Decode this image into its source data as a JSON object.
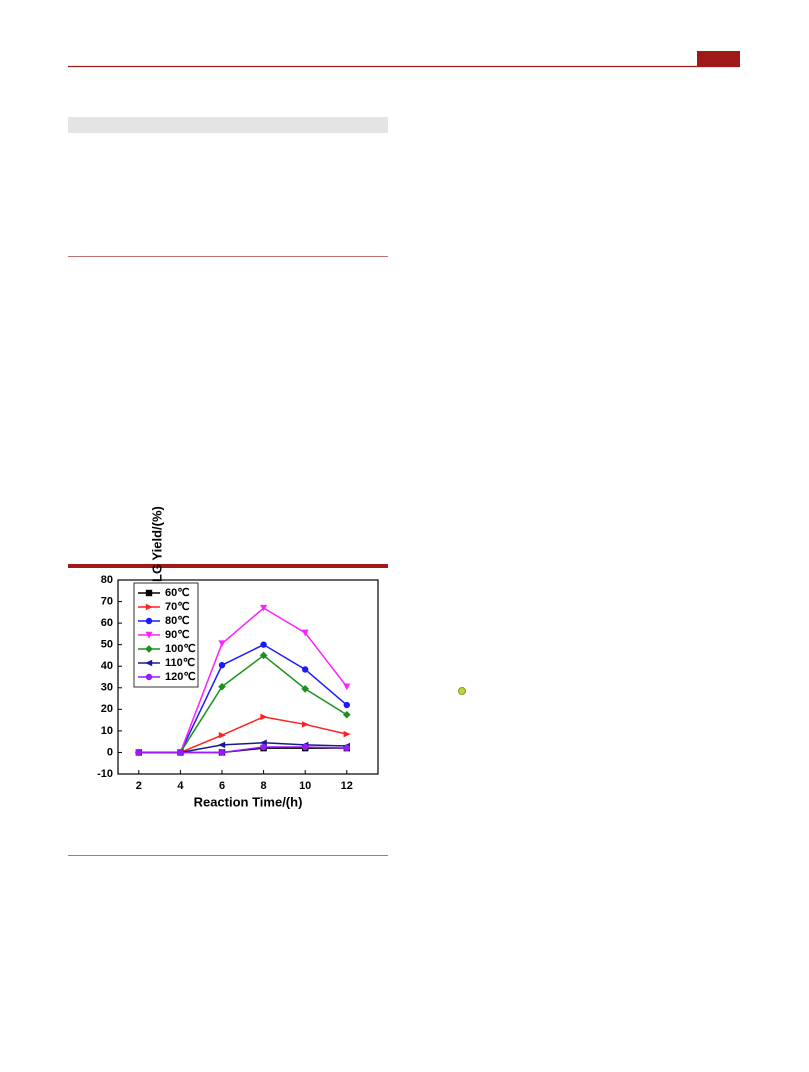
{
  "chart_data": {
    "type": "line",
    "x": [
      2,
      4,
      6,
      8,
      10,
      12
    ],
    "xlabel": "Reaction Time/(h)",
    "ylabel": "NCA-BLG Yield/(%)",
    "xlim": [
      1,
      13.5
    ],
    "xticks": [
      2,
      4,
      6,
      8,
      10,
      12
    ],
    "ylim": [
      -10,
      80
    ],
    "yticks": [
      -10,
      0,
      10,
      20,
      30,
      40,
      50,
      60,
      70,
      80
    ],
    "legend": "upper left",
    "series": [
      {
        "name": "60℃",
        "color": "#000000",
        "marker": "square",
        "values": [
          0,
          0,
          0,
          2,
          2,
          2
        ]
      },
      {
        "name": "70℃",
        "color": "#ff2020",
        "marker": "triangle-right",
        "values": [
          0,
          0,
          8,
          16.5,
          13,
          8.5
        ]
      },
      {
        "name": "80℃",
        "color": "#1a1aff",
        "marker": "circle",
        "values": [
          0,
          0,
          40.5,
          50,
          38.5,
          22
        ]
      },
      {
        "name": "90℃",
        "color": "#ff20ff",
        "marker": "triangle-down",
        "values": [
          0,
          0,
          50.5,
          67,
          55.5,
          30.5
        ]
      },
      {
        "name": "100℃",
        "color": "#1f8f1f",
        "marker": "diamond",
        "values": [
          0,
          0,
          30.5,
          45,
          29.5,
          17.5
        ]
      },
      {
        "name": "110℃",
        "color": "#1a1a90",
        "marker": "triangle-left",
        "values": [
          0,
          0,
          3.5,
          4.5,
          3.5,
          3
        ]
      },
      {
        "name": "120℃",
        "color": "#9a1aff",
        "marker": "circle",
        "values": [
          0,
          0,
          0,
          2.5,
          2.5,
          2
        ]
      }
    ]
  }
}
